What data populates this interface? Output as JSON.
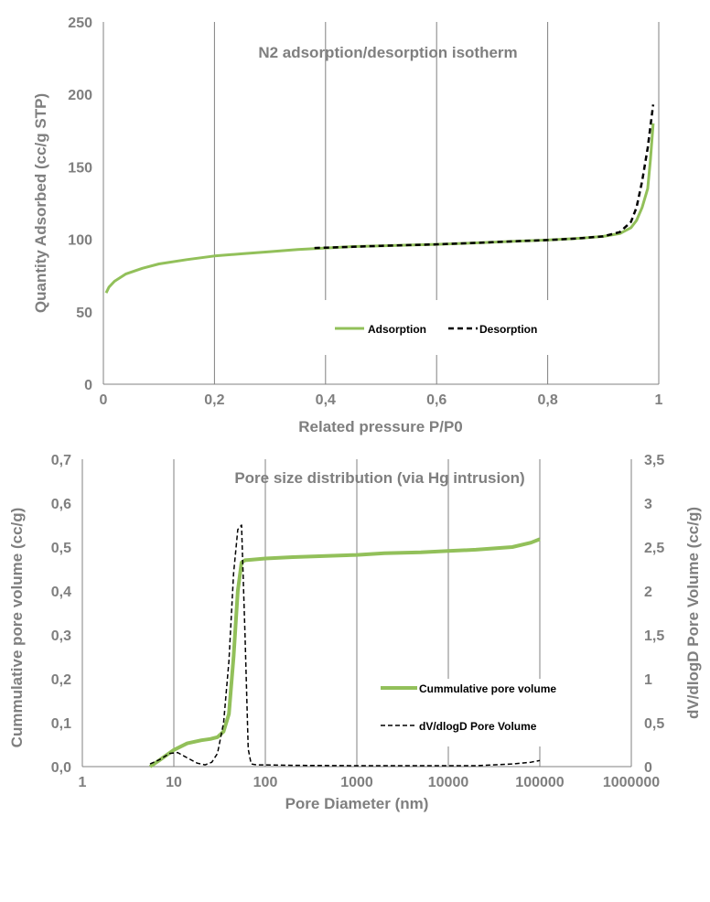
{
  "colors": {
    "green": "#92c05a",
    "black": "#000000",
    "grid": "#808080",
    "text": "#7f7f7f"
  },
  "chart_data": [
    {
      "type": "line",
      "title": "N2 adsorption/desorption isotherm",
      "xlabel": "Related pressure P/P0",
      "ylabel": "Quantity Adsorbed (cc/g STP)",
      "xlim": [
        0,
        1
      ],
      "ylim": [
        0,
        250
      ],
      "xticks": [
        "0",
        "0,2",
        "0,4",
        "0,6",
        "0,8",
        "1"
      ],
      "yticks": [
        "0",
        "50",
        "100",
        "150",
        "200",
        "250"
      ],
      "grid": "vertical",
      "legend_position": "center-right",
      "series": [
        {
          "name": "Adsorption",
          "style": "solid",
          "x": [
            0.005,
            0.01,
            0.02,
            0.04,
            0.07,
            0.1,
            0.15,
            0.2,
            0.25,
            0.3,
            0.35,
            0.4,
            0.45,
            0.5,
            0.55,
            0.6,
            0.65,
            0.7,
            0.75,
            0.8,
            0.85,
            0.9,
            0.93,
            0.95,
            0.96,
            0.97,
            0.98,
            0.985,
            0.99
          ],
          "y": [
            63,
            67,
            71,
            76,
            80,
            83,
            86,
            88.5,
            90,
            91.5,
            93,
            94,
            95,
            95.5,
            96,
            96.5,
            97.2,
            98,
            98.8,
            99.5,
            100.5,
            102,
            104,
            108,
            113,
            122,
            135,
            155,
            180
          ]
        },
        {
          "name": "Desorption",
          "style": "dashed",
          "x": [
            0.38,
            0.45,
            0.5,
            0.55,
            0.6,
            0.65,
            0.7,
            0.75,
            0.8,
            0.85,
            0.9,
            0.93,
            0.95,
            0.96,
            0.97,
            0.98,
            0.985,
            0.99
          ],
          "y": [
            94,
            94.8,
            95.5,
            96,
            96.5,
            97.2,
            98,
            98.8,
            99.5,
            100.5,
            102,
            105,
            112,
            122,
            140,
            163,
            178,
            193
          ]
        }
      ]
    },
    {
      "type": "line",
      "title": "Pore size distribution (via Hg intrusion)",
      "xlabel": "Pore Diameter (nm)",
      "ylabel": "Cummulative pore volume (cc/g)",
      "y2label": "dV/dlogD Pore Volume  (cc/g)",
      "xscale": "log",
      "xlim": [
        1,
        1000000
      ],
      "ylim": [
        0,
        0.7
      ],
      "y2lim": [
        0,
        3.5
      ],
      "xticks": [
        "1",
        "10",
        "100",
        "1000",
        "10000",
        "100000",
        "1000000"
      ],
      "yticks": [
        "0,0",
        "0,1",
        "0,2",
        "0,3",
        "0,4",
        "0,5",
        "0,6",
        "0,7"
      ],
      "y2ticks": [
        "0",
        "0,5",
        "1",
        "1,5",
        "2",
        "2,5",
        "3",
        "3,5"
      ],
      "grid": "vertical",
      "legend_position": "center-right",
      "series": [
        {
          "name": "Cummulative pore volume",
          "axis": "left",
          "style": "solid",
          "x": [
            5.5,
            7,
            10,
            14,
            20,
            25,
            30,
            35,
            40,
            45,
            50,
            55,
            60,
            70,
            100,
            200,
            500,
            1000,
            2000,
            5000,
            10000,
            20000,
            50000,
            80000,
            100000
          ],
          "y": [
            0.0,
            0.015,
            0.038,
            0.053,
            0.06,
            0.063,
            0.067,
            0.08,
            0.12,
            0.25,
            0.4,
            0.465,
            0.47,
            0.471,
            0.474,
            0.477,
            0.48,
            0.482,
            0.486,
            0.488,
            0.491,
            0.494,
            0.5,
            0.51,
            0.518
          ]
        },
        {
          "name": "dV/dlogD Pore Volume",
          "axis": "right",
          "style": "dashed",
          "x": [
            5.5,
            7,
            9,
            11,
            14,
            18,
            22,
            26,
            30,
            35,
            40,
            45,
            50,
            55,
            60,
            65,
            70,
            80,
            100,
            200,
            1000,
            5000,
            20000,
            50000,
            80000,
            100000
          ],
          "y": [
            0.03,
            0.08,
            0.15,
            0.16,
            0.1,
            0.04,
            0.02,
            0.05,
            0.15,
            0.5,
            1.2,
            2.2,
            2.7,
            2.75,
            1.5,
            0.2,
            0.03,
            0.02,
            0.02,
            0.015,
            0.01,
            0.01,
            0.01,
            0.03,
            0.05,
            0.07
          ]
        }
      ]
    }
  ]
}
